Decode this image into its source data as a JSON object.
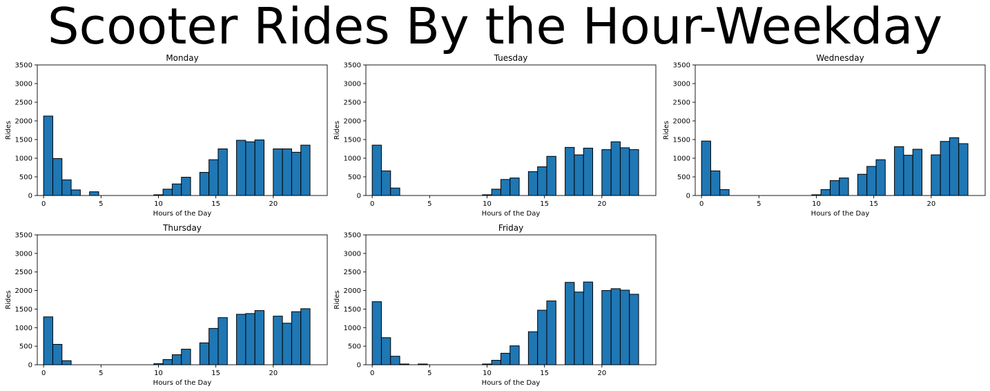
{
  "figure": {
    "suptitle": "Scooter Rides By the Hour-Weekday",
    "bar_color": "#1f77b4",
    "edge_color": "#000000"
  },
  "chart_data": [
    {
      "type": "bar",
      "title": "Monday",
      "xlabel": "Hours of the Day",
      "ylabel": "Rides",
      "ylim": [
        0,
        3500
      ],
      "yticks": [
        0,
        500,
        1000,
        1500,
        2000,
        2500,
        3000,
        3500
      ],
      "xticks": [
        0,
        5,
        10,
        15,
        20
      ],
      "xlim": [
        -0.55,
        24.7
      ],
      "bins": [
        {
          "x": 0.0,
          "value": 2130
        },
        {
          "x": 0.8,
          "value": 990
        },
        {
          "x": 1.6,
          "value": 420
        },
        {
          "x": 2.4,
          "value": 150
        },
        {
          "x": 3.2,
          "value": 0
        },
        {
          "x": 4.0,
          "value": 100
        },
        {
          "x": 4.8,
          "value": 0
        },
        {
          "x": 5.6,
          "value": 0
        },
        {
          "x": 6.4,
          "value": 0
        },
        {
          "x": 7.2,
          "value": 0
        },
        {
          "x": 8.0,
          "value": 0
        },
        {
          "x": 8.8,
          "value": 0
        },
        {
          "x": 9.6,
          "value": 20
        },
        {
          "x": 10.4,
          "value": 170
        },
        {
          "x": 11.2,
          "value": 310
        },
        {
          "x": 12.0,
          "value": 490
        },
        {
          "x": 12.8,
          "value": 0
        },
        {
          "x": 13.6,
          "value": 620
        },
        {
          "x": 14.4,
          "value": 960
        },
        {
          "x": 15.2,
          "value": 1250
        },
        {
          "x": 16.0,
          "value": 0
        },
        {
          "x": 16.8,
          "value": 1480
        },
        {
          "x": 17.6,
          "value": 1440
        },
        {
          "x": 18.4,
          "value": 1490
        },
        {
          "x": 19.2,
          "value": 0
        },
        {
          "x": 20.0,
          "value": 1250
        },
        {
          "x": 20.8,
          "value": 1250
        },
        {
          "x": 21.6,
          "value": 1160
        },
        {
          "x": 22.4,
          "value": 1350
        }
      ]
    },
    {
      "type": "bar",
      "title": "Tuesday",
      "xlabel": "Hours of the Day",
      "ylabel": "Rides",
      "ylim": [
        0,
        3500
      ],
      "yticks": [
        0,
        500,
        1000,
        1500,
        2000,
        2500,
        3000,
        3500
      ],
      "xticks": [
        0,
        5,
        10,
        15,
        20
      ],
      "xlim": [
        -0.55,
        24.7
      ],
      "bins": [
        {
          "x": 0.0,
          "value": 1350
        },
        {
          "x": 0.8,
          "value": 660
        },
        {
          "x": 1.6,
          "value": 200
        },
        {
          "x": 2.4,
          "value": 0
        },
        {
          "x": 3.2,
          "value": 0
        },
        {
          "x": 4.0,
          "value": 0
        },
        {
          "x": 4.8,
          "value": 0
        },
        {
          "x": 5.6,
          "value": 0
        },
        {
          "x": 6.4,
          "value": 0
        },
        {
          "x": 7.2,
          "value": 0
        },
        {
          "x": 8.0,
          "value": 0
        },
        {
          "x": 8.8,
          "value": 0
        },
        {
          "x": 9.6,
          "value": 20
        },
        {
          "x": 10.4,
          "value": 170
        },
        {
          "x": 11.2,
          "value": 430
        },
        {
          "x": 12.0,
          "value": 470
        },
        {
          "x": 12.8,
          "value": 0
        },
        {
          "x": 13.6,
          "value": 640
        },
        {
          "x": 14.4,
          "value": 770
        },
        {
          "x": 15.2,
          "value": 1050
        },
        {
          "x": 16.0,
          "value": 0
        },
        {
          "x": 16.8,
          "value": 1290
        },
        {
          "x": 17.6,
          "value": 1090
        },
        {
          "x": 18.4,
          "value": 1270
        },
        {
          "x": 19.2,
          "value": 0
        },
        {
          "x": 20.0,
          "value": 1230
        },
        {
          "x": 20.8,
          "value": 1440
        },
        {
          "x": 21.6,
          "value": 1280
        },
        {
          "x": 22.4,
          "value": 1230
        }
      ]
    },
    {
      "type": "bar",
      "title": "Wednesday",
      "xlabel": "Hours of the Day",
      "ylabel": "Rides",
      "ylim": [
        0,
        3500
      ],
      "yticks": [
        0,
        500,
        1000,
        1500,
        2000,
        2500,
        3000,
        3500
      ],
      "xticks": [
        0,
        5,
        10,
        15,
        20
      ],
      "xlim": [
        -0.55,
        24.7
      ],
      "bins": [
        {
          "x": 0.0,
          "value": 1460
        },
        {
          "x": 0.8,
          "value": 660
        },
        {
          "x": 1.6,
          "value": 160
        },
        {
          "x": 2.4,
          "value": 0
        },
        {
          "x": 3.2,
          "value": 0
        },
        {
          "x": 4.0,
          "value": 0
        },
        {
          "x": 4.8,
          "value": 0
        },
        {
          "x": 5.6,
          "value": 0
        },
        {
          "x": 6.4,
          "value": 0
        },
        {
          "x": 7.2,
          "value": 0
        },
        {
          "x": 8.0,
          "value": 0
        },
        {
          "x": 8.8,
          "value": 0
        },
        {
          "x": 9.6,
          "value": 20
        },
        {
          "x": 10.4,
          "value": 160
        },
        {
          "x": 11.2,
          "value": 400
        },
        {
          "x": 12.0,
          "value": 470
        },
        {
          "x": 12.8,
          "value": 0
        },
        {
          "x": 13.6,
          "value": 570
        },
        {
          "x": 14.4,
          "value": 780
        },
        {
          "x": 15.2,
          "value": 960
        },
        {
          "x": 16.0,
          "value": 0
        },
        {
          "x": 16.8,
          "value": 1310
        },
        {
          "x": 17.6,
          "value": 1080
        },
        {
          "x": 18.4,
          "value": 1240
        },
        {
          "x": 19.2,
          "value": 0
        },
        {
          "x": 20.0,
          "value": 1090
        },
        {
          "x": 20.8,
          "value": 1450
        },
        {
          "x": 21.6,
          "value": 1550
        },
        {
          "x": 22.4,
          "value": 1390
        }
      ]
    },
    {
      "type": "bar",
      "title": "Thursday",
      "xlabel": "Hours of the Day",
      "ylabel": "Rides",
      "ylim": [
        0,
        3500
      ],
      "yticks": [
        0,
        500,
        1000,
        1500,
        2000,
        2500,
        3000,
        3500
      ],
      "xticks": [
        0,
        5,
        10,
        15,
        20
      ],
      "xlim": [
        -0.55,
        24.7
      ],
      "bins": [
        {
          "x": 0.0,
          "value": 1290
        },
        {
          "x": 0.8,
          "value": 550
        },
        {
          "x": 1.6,
          "value": 110
        },
        {
          "x": 2.4,
          "value": 0
        },
        {
          "x": 3.2,
          "value": 0
        },
        {
          "x": 4.0,
          "value": 0
        },
        {
          "x": 4.8,
          "value": 0
        },
        {
          "x": 5.6,
          "value": 0
        },
        {
          "x": 6.4,
          "value": 0
        },
        {
          "x": 7.2,
          "value": 0
        },
        {
          "x": 8.0,
          "value": 0
        },
        {
          "x": 8.8,
          "value": 0
        },
        {
          "x": 9.6,
          "value": 30
        },
        {
          "x": 10.4,
          "value": 140
        },
        {
          "x": 11.2,
          "value": 270
        },
        {
          "x": 12.0,
          "value": 420
        },
        {
          "x": 12.8,
          "value": 0
        },
        {
          "x": 13.6,
          "value": 590
        },
        {
          "x": 14.4,
          "value": 980
        },
        {
          "x": 15.2,
          "value": 1270
        },
        {
          "x": 16.0,
          "value": 0
        },
        {
          "x": 16.8,
          "value": 1360
        },
        {
          "x": 17.6,
          "value": 1380
        },
        {
          "x": 18.4,
          "value": 1460
        },
        {
          "x": 19.2,
          "value": 0
        },
        {
          "x": 20.0,
          "value": 1310
        },
        {
          "x": 20.8,
          "value": 1120
        },
        {
          "x": 21.6,
          "value": 1430
        },
        {
          "x": 22.4,
          "value": 1510
        }
      ]
    },
    {
      "type": "bar",
      "title": "Friday",
      "xlabel": "Hours of the Day",
      "ylabel": "Rides",
      "ylim": [
        0,
        3500
      ],
      "yticks": [
        0,
        500,
        1000,
        1500,
        2000,
        2500,
        3000,
        3500
      ],
      "xticks": [
        0,
        5,
        10,
        15,
        20
      ],
      "xlim": [
        -0.55,
        24.7
      ],
      "bins": [
        {
          "x": 0.0,
          "value": 1700
        },
        {
          "x": 0.8,
          "value": 730
        },
        {
          "x": 1.6,
          "value": 230
        },
        {
          "x": 2.4,
          "value": 20
        },
        {
          "x": 3.2,
          "value": 0
        },
        {
          "x": 4.0,
          "value": 20
        },
        {
          "x": 4.8,
          "value": 0
        },
        {
          "x": 5.6,
          "value": 0
        },
        {
          "x": 6.4,
          "value": 0
        },
        {
          "x": 7.2,
          "value": 0
        },
        {
          "x": 8.0,
          "value": 0
        },
        {
          "x": 8.8,
          "value": 0
        },
        {
          "x": 9.6,
          "value": 20
        },
        {
          "x": 10.4,
          "value": 120
        },
        {
          "x": 11.2,
          "value": 310
        },
        {
          "x": 12.0,
          "value": 510
        },
        {
          "x": 12.8,
          "value": 0
        },
        {
          "x": 13.6,
          "value": 890
        },
        {
          "x": 14.4,
          "value": 1470
        },
        {
          "x": 15.2,
          "value": 1720
        },
        {
          "x": 16.0,
          "value": 0
        },
        {
          "x": 16.8,
          "value": 2220
        },
        {
          "x": 17.6,
          "value": 1960
        },
        {
          "x": 18.4,
          "value": 2230
        },
        {
          "x": 19.2,
          "value": 0
        },
        {
          "x": 20.0,
          "value": 2000
        },
        {
          "x": 20.8,
          "value": 2050
        },
        {
          "x": 21.6,
          "value": 2010
        },
        {
          "x": 22.4,
          "value": 1900
        }
      ]
    }
  ]
}
